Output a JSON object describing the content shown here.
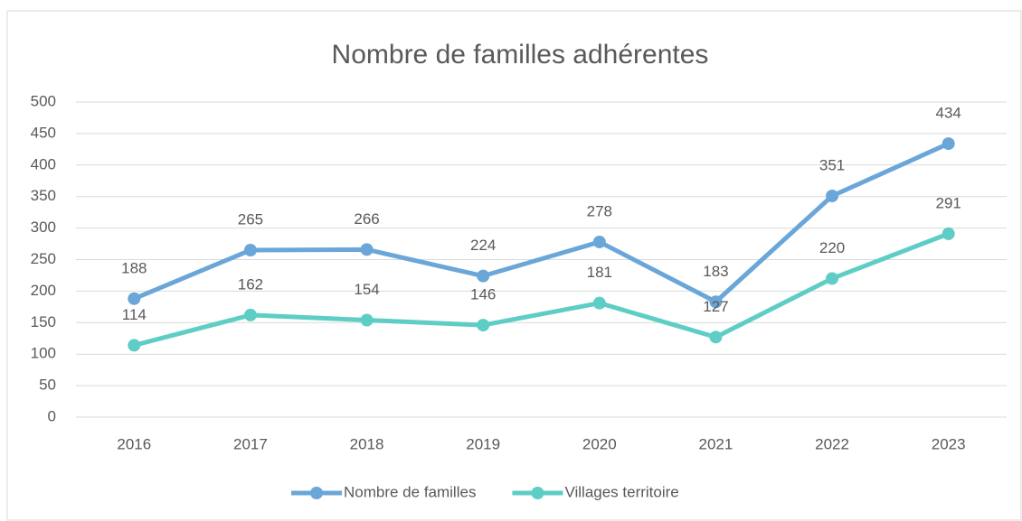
{
  "chart_data": {
    "type": "line",
    "title": "Nombre de familles adhérentes",
    "categories": [
      "2016",
      "2017",
      "2018",
      "2019",
      "2020",
      "2021",
      "2022",
      "2023"
    ],
    "series": [
      {
        "name": "Nombre de familles",
        "color": "#6aa6d8",
        "values": [
          188,
          265,
          266,
          224,
          278,
          183,
          351,
          434
        ]
      },
      {
        "name": "Villages territoire",
        "color": "#5ecdc5",
        "values": [
          114,
          162,
          154,
          146,
          181,
          127,
          220,
          291
        ]
      }
    ],
    "ylim": [
      0,
      500
    ],
    "yticks": [
      0,
      50,
      100,
      150,
      200,
      250,
      300,
      350,
      400,
      450,
      500
    ],
    "grid": true,
    "legend": "bottom"
  }
}
